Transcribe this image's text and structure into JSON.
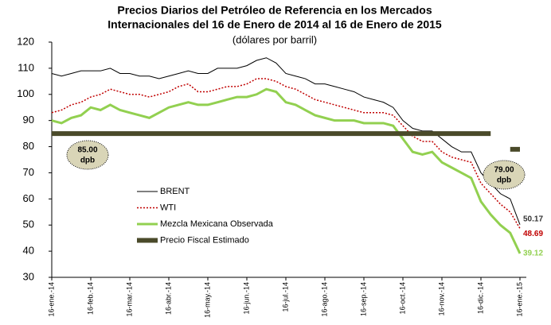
{
  "chart_data": {
    "type": "line",
    "title": [
      "Precios Diarios del Petróleo de Referencia en los Mercados",
      "Internacionales del 16 de Enero de 2014 al 16 de Enero de 2015"
    ],
    "subtitle": "(dólares por barril)",
    "categories": [
      "16-ene.-14",
      null,
      null,
      null,
      "16-feb.-14",
      null,
      null,
      null,
      "16-mar.-14",
      null,
      null,
      null,
      "16-abr.-14",
      null,
      null,
      null,
      "16-may.-14",
      null,
      null,
      null,
      "16-jun.-14",
      null,
      null,
      null,
      "16-jul.-14",
      null,
      null,
      null,
      "16-ago.-14",
      null,
      null,
      null,
      "16-sep.-14",
      null,
      null,
      null,
      "16-oct.-14",
      null,
      null,
      null,
      "16-nov.-14",
      null,
      null,
      null,
      "16-dic.-14",
      null,
      null,
      null,
      "16-ene.-15"
    ],
    "series": [
      {
        "name": "BRENT",
        "color": "#000000",
        "width": 1,
        "dash": "solid",
        "end_label": true,
        "values": [
          108,
          107,
          108,
          109,
          109,
          109,
          110,
          108,
          108,
          107,
          107,
          106,
          107,
          108,
          109,
          108,
          108,
          110,
          110,
          110,
          111,
          113,
          114,
          112,
          108,
          107,
          106,
          104,
          104,
          103,
          102,
          101,
          99,
          98,
          97,
          95,
          90,
          87,
          86,
          86,
          83,
          80,
          78,
          78,
          70,
          66,
          62,
          60,
          50.17
        ]
      },
      {
        "name": "WTI",
        "color": "#c00000",
        "width": 1.5,
        "dash": "dotted",
        "end_label": true,
        "values": [
          93,
          94,
          96,
          97,
          99,
          100,
          102,
          101,
          100,
          100,
          99,
          100,
          101,
          103,
          104,
          101,
          101,
          102,
          103,
          103,
          104,
          106,
          106,
          105,
          103,
          102,
          100,
          98,
          97,
          96,
          95,
          94,
          93,
          93,
          93,
          92,
          88,
          84,
          82,
          82,
          78,
          76,
          75,
          74,
          66,
          62,
          58,
          55,
          48.69
        ]
      },
      {
        "name": "Mezcla Mexicana Observada",
        "color": "#92d050",
        "width": 3,
        "dash": "solid",
        "end_label": true,
        "values": [
          90,
          89,
          91,
          92,
          95,
          94,
          96,
          94,
          93,
          92,
          91,
          93,
          95,
          96,
          97,
          96,
          96,
          97,
          98,
          99,
          99,
          100,
          102,
          101,
          97,
          96,
          94,
          92,
          91,
          90,
          90,
          90,
          89,
          89,
          89,
          88,
          83,
          78,
          77,
          78,
          74,
          72,
          70,
          68,
          59,
          54,
          50,
          47,
          39.12
        ]
      },
      {
        "name": "Precio Fiscal Estimado",
        "color": "#4a4a2a",
        "width": 6,
        "dash": "solid",
        "end_label": false,
        "values": [
          85,
          85,
          85,
          85,
          85,
          85,
          85,
          85,
          85,
          85,
          85,
          85,
          85,
          85,
          85,
          85,
          85,
          85,
          85,
          85,
          85,
          85,
          85,
          85,
          85,
          85,
          85,
          85,
          85,
          85,
          85,
          85,
          85,
          85,
          85,
          85,
          85,
          85,
          85,
          85,
          85,
          85,
          85,
          85,
          85,
          85,
          null,
          79,
          79
        ]
      }
    ],
    "annotations": [
      [
        "85.00",
        "dpb"
      ],
      [
        "79.00",
        "dpb"
      ]
    ],
    "ylim": [
      30,
      120
    ],
    "yticks": [
      30,
      40,
      50,
      60,
      70,
      80,
      90,
      100,
      110,
      120
    ],
    "grid": false,
    "legend": "left"
  }
}
